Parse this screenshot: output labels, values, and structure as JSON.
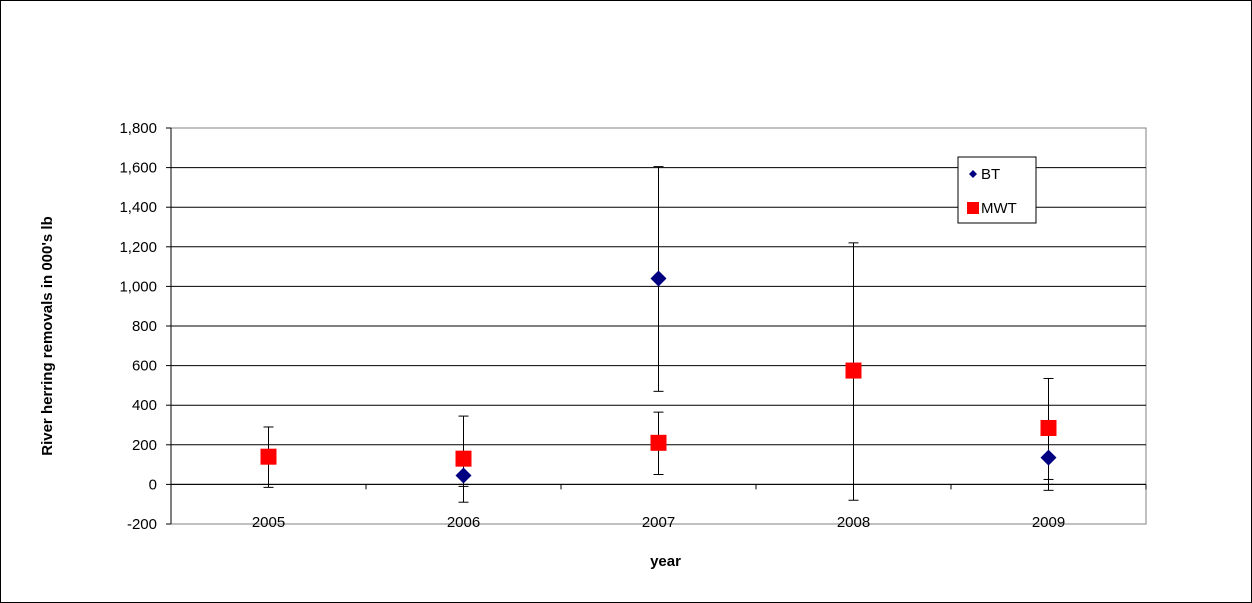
{
  "chart_data": {
    "type": "scatter",
    "title": "",
    "xlabel": "year",
    "ylabel": "River herring removals in 000's lb",
    "categories": [
      "2005",
      "2006",
      "2007",
      "2008",
      "2009"
    ],
    "ylim": [
      -200,
      1800
    ],
    "yticks": [
      -200,
      0,
      200,
      400,
      600,
      800,
      1000,
      1200,
      1400,
      1600,
      1800
    ],
    "grid": true,
    "legend_position": "top-right",
    "series": [
      {
        "name": "BT",
        "marker": "diamond",
        "color": "#000080",
        "points": [
          {
            "x": "2006",
            "y": 45,
            "err_low": -90,
            "err_high": 0
          },
          {
            "x": "2007",
            "y": 1040,
            "err_low": 470,
            "err_high": 1605
          },
          {
            "x": "2009",
            "y": 135,
            "err_low": 25,
            "err_high": 0
          }
        ]
      },
      {
        "name": "MWT",
        "marker": "square",
        "color": "#ff0000",
        "points": [
          {
            "x": "2005",
            "y": 140,
            "err_low": -15,
            "err_high": 290
          },
          {
            "x": "2006",
            "y": 130,
            "err_low": -10,
            "err_high": 345
          },
          {
            "x": "2007",
            "y": 210,
            "err_low": 50,
            "err_high": 365
          },
          {
            "x": "2008",
            "y": 575,
            "err_low": -80,
            "err_high": 1220
          },
          {
            "x": "2009",
            "y": 285,
            "err_low": -30,
            "err_high": 535
          }
        ]
      }
    ]
  }
}
